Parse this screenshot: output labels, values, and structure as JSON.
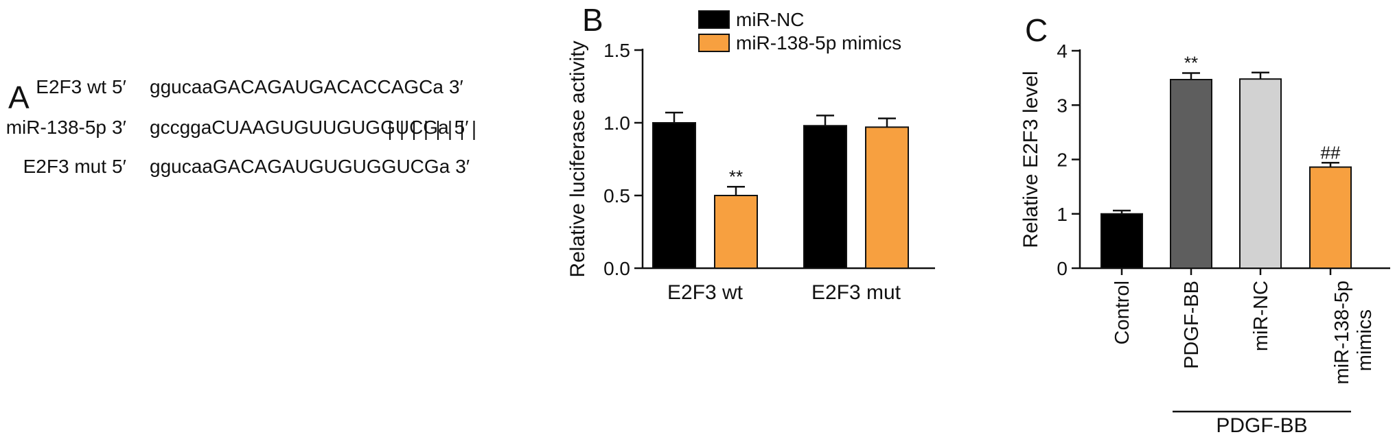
{
  "panel_a": {
    "letter": "A",
    "rows": [
      {
        "label": "E2F3 wt",
        "prime_left": "5′",
        "lower": "ggucaa",
        "upper": "GACAGAUGACACCAGC",
        "tail": "a",
        "prime_right": "3′"
      },
      {
        "label": "miR-138-5p",
        "prime_left": "3′",
        "lower": "gccgga",
        "upper": "CUAAGUGUUGUGGUCG",
        "tail": "a",
        "prime_right": "5′"
      },
      {
        "label": "E2F3 mut",
        "prime_left": "5′",
        "lower": "ggucaa",
        "upper": "GACAGAUGUGUGGUCG",
        "tail": "a",
        "prime_right": "3′"
      }
    ],
    "pairing_lines": 8
  },
  "chart_data": [
    {
      "panel": "B",
      "type": "bar",
      "ylabel": "Relative luciferase activity",
      "ylim": [
        0,
        1.5
      ],
      "yticks": [
        "0.0",
        "0.5",
        "1.0",
        "1.5"
      ],
      "categories": [
        "E2F3 wt",
        "E2F3 mut"
      ],
      "series": [
        {
          "name": "miR-NC",
          "color": "#000000",
          "values": [
            1.0,
            0.98
          ],
          "errors": [
            0.07,
            0.07
          ],
          "annotations": [
            "",
            ""
          ]
        },
        {
          "name": "miR-138-5p mimics",
          "color": "#F7A040",
          "values": [
            0.5,
            0.97
          ],
          "errors": [
            0.06,
            0.06
          ],
          "annotations": [
            "**",
            ""
          ]
        }
      ],
      "legend": "top-left"
    },
    {
      "panel": "C",
      "type": "bar",
      "ylabel": "Relative E2F3 level",
      "ylim": [
        0,
        4
      ],
      "yticks": [
        "0",
        "1",
        "2",
        "3",
        "4"
      ],
      "categories": [
        "Control",
        "PDGF-BB",
        "miR-NC",
        "miR-138-5p\nmimics"
      ],
      "category_lines": [
        [
          "Control"
        ],
        [
          "PDGF-BB"
        ],
        [
          "miR-NC"
        ],
        [
          "miR-138-5p",
          "mimics"
        ]
      ],
      "values": [
        1.0,
        3.47,
        3.48,
        1.86
      ],
      "errors": [
        0.06,
        0.12,
        0.12,
        0.08
      ],
      "colors": [
        "#000000",
        "#5e5e5e",
        "#d2d2d2",
        "#F7A040"
      ],
      "annotations": [
        "",
        "**",
        "",
        "##"
      ],
      "group_label": "PDGF-BB"
    }
  ]
}
